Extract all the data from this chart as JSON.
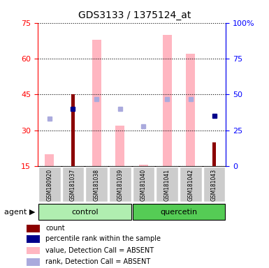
{
  "title": "GDS3133 / 1375124_at",
  "samples": [
    "GSM180920",
    "GSM181037",
    "GSM181038",
    "GSM181039",
    "GSM181040",
    "GSM181041",
    "GSM181042",
    "GSM181043"
  ],
  "ylim_left": [
    15,
    75
  ],
  "ylim_right": [
    0,
    100
  ],
  "yticks_left": [
    15,
    30,
    45,
    60,
    75
  ],
  "yticks_right": [
    0,
    25,
    50,
    75,
    100
  ],
  "count_bars": {
    "GSM181037": 45,
    "GSM181043": 25
  },
  "count_color": "#8B0000",
  "rank_dots": {
    "GSM181037": 40,
    "GSM181043": 35
  },
  "rank_color": "#00008B",
  "absent_value_bars": {
    "GSM180920": 20,
    "GSM181038": 68,
    "GSM181039": 32,
    "GSM181040": 15.5,
    "GSM181041": 70,
    "GSM181042": 62
  },
  "absent_value_color": "#FFB6C1",
  "absent_rank_dots": {
    "GSM180920": 33,
    "GSM181038": 47,
    "GSM181039": 40,
    "GSM181040": 28,
    "GSM181041": 47,
    "GSM181042": 47
  },
  "absent_rank_color": "#AAAADD",
  "legend_items": [
    {
      "label": "count",
      "color": "#8B0000"
    },
    {
      "label": "percentile rank within the sample",
      "color": "#00008B"
    },
    {
      "label": "value, Detection Call = ABSENT",
      "color": "#FFB6C1"
    },
    {
      "label": "rank, Detection Call = ABSENT",
      "color": "#AAAADD"
    }
  ],
  "group_ranges": {
    "control": [
      0,
      3
    ],
    "quercetin": [
      4,
      7
    ]
  },
  "group_colors": {
    "control": "#B0EEB0",
    "quercetin": "#55CC55"
  }
}
